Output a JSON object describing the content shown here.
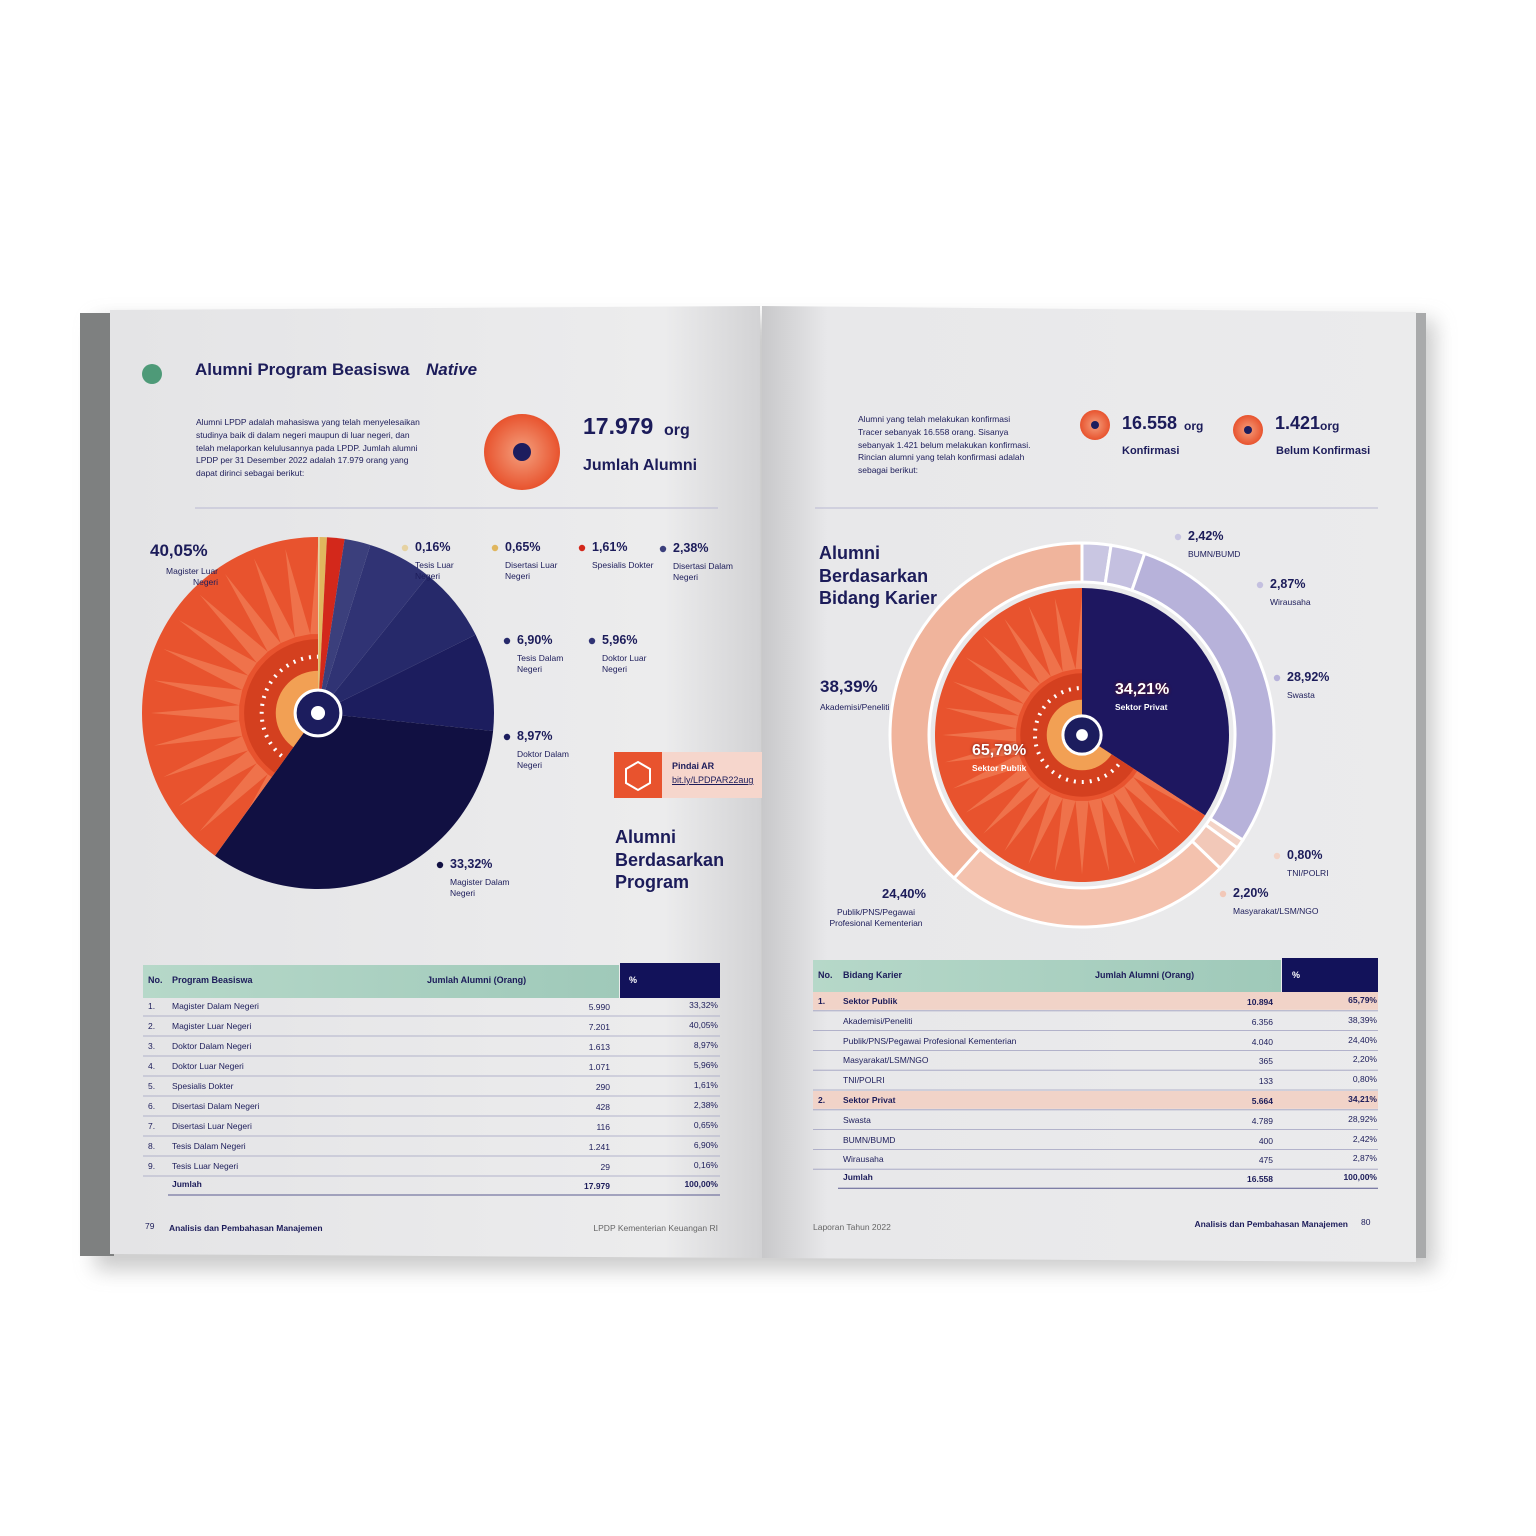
{
  "left_page": {
    "title": "Alumni Program Beasiswa",
    "title_italic": "Native",
    "intro": [
      "Alumni LPDP adalah mahasiswa yang telah menyelesaikan",
      "studinya baik di dalam negeri maupun di luar negeri, dan",
      "telah melaporkan kelulusannya pada LPDP. Jumlah alumni",
      "LPDP per 31 Desember 2022 adalah 17.979 orang yang",
      "dapat dirinci sebagai berikut:"
    ],
    "total": {
      "value": "17.979",
      "unit": "org",
      "label": "Jumlah Alumni"
    },
    "ar": {
      "label": "Pindai AR",
      "link": "bit.ly/LPDPAR22aug"
    },
    "table": {
      "header": [
        "No.",
        "Program Beasiswa",
        "Jumlah Alumni (Orang)",
        "%"
      ],
      "rows": [
        {
          "no": "1.",
          "name": "Magister Dalam Negeri",
          "count": "5.990",
          "percent": "33,32%"
        },
        {
          "no": "2.",
          "name": "Magister Luar Negeri",
          "count": "7.201",
          "percent": "40,05%"
        },
        {
          "no": "3.",
          "name": "Doktor Dalam Negeri",
          "count": "1.613",
          "percent": "8,97%"
        },
        {
          "no": "4.",
          "name": "Doktor Luar Negeri",
          "count": "1.071",
          "percent": "5,96%"
        },
        {
          "no": "5.",
          "name": "Spesialis Dokter",
          "count": "290",
          "percent": "1,61%"
        },
        {
          "no": "6.",
          "name": "Disertasi Dalam Negeri",
          "count": "428",
          "percent": "2,38%"
        },
        {
          "no": "7.",
          "name": "Disertasi Luar Negeri",
          "count": "116",
          "percent": "0,65%"
        },
        {
          "no": "8.",
          "name": "Tesis Dalam Negeri",
          "count": "1.241",
          "percent": "6,90%"
        },
        {
          "no": "9.",
          "name": "Tesis Luar Negeri",
          "count": "29",
          "percent": "0,16%"
        }
      ],
      "total": {
        "name": "Jumlah",
        "count": "17.979",
        "percent": "100,00%"
      }
    },
    "footer": {
      "page": "79",
      "section": "Analisis dan Pembahasan Manajemen",
      "publisher": "LPDP Kementerian Keuangan RI"
    }
  },
  "right_page": {
    "intro": [
      "Alumni yang telah melakukan konfirmasi",
      "Tracer sebanyak 16.558 orang. Sisanya",
      "sebanyak 1.421 belum melakukan konfirmasi.",
      "Rincian alumni yang telah konfirmasi adalah",
      "sebagai berikut:"
    ],
    "stats": [
      {
        "value": "16.558",
        "unit": "org",
        "label": "Konfirmasi"
      },
      {
        "value": "1.421",
        "unit": "org",
        "label": "Belum Konfirmasi"
      }
    ],
    "table": {
      "header": [
        "No.",
        "Bidang Karier",
        "Jumlah Alumni (Orang)",
        "%"
      ],
      "highlight_rows": [
        0,
        5
      ],
      "rows": [
        {
          "no": "1.",
          "name": "Sektor Publik",
          "count": "10.894",
          "percent": "65,79%"
        },
        {
          "name": "Akademisi/Peneliti",
          "count": "6.356",
          "percent": "38,39%"
        },
        {
          "name": "Publik/PNS/Pegawai Profesional Kementerian",
          "count": "4.040",
          "percent": "24,40%"
        },
        {
          "name": "Masyarakat/LSM/NGO",
          "count": "365",
          "percent": "2,20%"
        },
        {
          "name": "TNI/POLRI",
          "count": "133",
          "percent": "0,80%"
        },
        {
          "no": "2.",
          "name": "Sektor Privat",
          "count": "5.664",
          "percent": "34,21%"
        },
        {
          "name": "Swasta",
          "count": "4.789",
          "percent": "28,92%"
        },
        {
          "name": "BUMN/BUMD",
          "count": "400",
          "percent": "2,42%"
        },
        {
          "name": "Wirausaha",
          "count": "475",
          "percent": "2,87%"
        }
      ],
      "total": {
        "name": "Jumlah",
        "count": "16.558",
        "percent": "100,00%"
      }
    },
    "footer": {
      "report": "Laporan Tahun 2022",
      "section": "Analisis dan Pembahasan Manajemen",
      "page": "80"
    }
  },
  "chart_data": [
    {
      "type": "pie",
      "title": "Alumni Berdasarkan Program",
      "categories": [
        "Tesis Luar Negeri",
        "Disertasi Luar Negeri",
        "Spesialis Dokter",
        "Disertasi Dalam Negeri",
        "Doktor Luar Negeri",
        "Tesis Dalam Negeri",
        "Doktor Dalam Negeri",
        "Magister Dalam Negeri",
        "Magister Luar Negeri"
      ],
      "values": [
        0.16,
        0.65,
        1.61,
        2.38,
        5.96,
        6.9,
        8.97,
        33.32,
        40.05
      ],
      "value_labels": [
        "0,16%",
        "0,65%",
        "1,61%",
        "2,38%",
        "5,96%",
        "6,90%",
        "8,97%",
        "33,32%",
        "40,05%"
      ],
      "colors": [
        "#e6d2a2",
        "#e0b65e",
        "#d3281b",
        "#3b3f7c",
        "#303374",
        "#26296a",
        "#1c1d5e",
        "#111042",
        "#e8532e"
      ]
    },
    {
      "type": "pie",
      "title": "Alumni Berdasarkan Bidang Karier",
      "categories": [
        "Sektor Privat",
        "Sektor Publik"
      ],
      "values": [
        34.21,
        65.79
      ],
      "value_labels": [
        "34,21%",
        "65,79%"
      ],
      "colors": [
        "#1e1760",
        "#e8532e"
      ]
    },
    {
      "type": "donut",
      "categories": [
        "BUMN/BUMD",
        "Wirausaha",
        "Swasta",
        "TNI/POLRI",
        "Masyarakat/LSM/NGO",
        "Publik/PNS/Pegawai Profesional Kementerian",
        "Akademisi/Peneliti"
      ],
      "values": [
        2.42,
        2.87,
        28.92,
        0.8,
        2.2,
        24.4,
        38.39
      ],
      "value_labels": [
        "2,42%",
        "2,87%",
        "28,92%",
        "0,80%",
        "2,20%",
        "24,40%",
        "38,39%"
      ],
      "colors": [
        "#c9c6e2",
        "#c4c0e0",
        "#b7b2da",
        "#f3d3c6",
        "#f2c8b8",
        "#f4c2ae",
        "#f0b49c"
      ]
    }
  ]
}
